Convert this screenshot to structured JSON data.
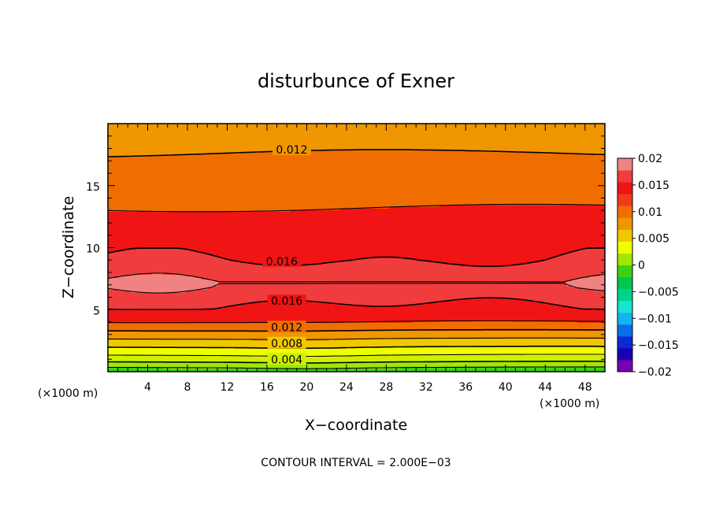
{
  "chart_data": {
    "type": "heatmap",
    "title": "disturbunce of Exner",
    "xlabel": "X−coordinate",
    "ylabel": "Z−coordinate",
    "x_unit": "(×1000 m)",
    "y_unit": "(×1000 m)",
    "xlim": [
      0,
      50
    ],
    "ylim": [
      0,
      20
    ],
    "xticks": [
      4,
      8,
      12,
      16,
      20,
      24,
      28,
      32,
      36,
      40,
      44,
      48
    ],
    "yticks": [
      5,
      10,
      15
    ],
    "contour_interval_text": "CONTOUR INTERVAL = 2.000E−03",
    "contour_interval": 0.002,
    "contour_levels": [
      0.002,
      0.004,
      0.006,
      0.008,
      0.01,
      0.012,
      0.014,
      0.016,
      0.018
    ],
    "contour_labels": [
      {
        "text": "0.012",
        "x": 18.5,
        "z": 17.9
      },
      {
        "text": "0.016",
        "x": 17.5,
        "z": 8.9
      },
      {
        "text": "0.016",
        "x": 18.0,
        "z": 5.7
      },
      {
        "text": "0.012",
        "x": 18.0,
        "z": 3.6
      },
      {
        "text": "0.008",
        "x": 18.0,
        "z": 2.3
      },
      {
        "text": "0.004",
        "x": 18.0,
        "z": 1.0
      }
    ],
    "colorbar": {
      "min": -0.02,
      "max": 0.02,
      "ticks": [
        "0.02",
        "0.015",
        "0.01",
        "0.005",
        "0",
        "−0.005",
        "−0.01",
        "−0.015",
        "−0.02"
      ],
      "colors": [
        "#7a00b4",
        "#1a00b4",
        "#0a2ad8",
        "#0a6eea",
        "#14b4f0",
        "#14e6d2",
        "#00d28c",
        "#00c84b",
        "#3cd214",
        "#a0e60a",
        "#f0ff00",
        "#f0c800",
        "#f09600",
        "#f06e00",
        "#f03c1e",
        "#f01414",
        "#f03c3c",
        "#f08282"
      ]
    },
    "bands": [
      {
        "level": 0.0,
        "color": "#3cd214"
      },
      {
        "level": 0.002,
        "color": "#a0e60a"
      },
      {
        "level": 0.004,
        "color": "#cff000"
      },
      {
        "level": 0.006,
        "color": "#f0ff00"
      },
      {
        "level": 0.008,
        "color": "#f0c800"
      },
      {
        "level": 0.01,
        "color": "#f09600"
      },
      {
        "level": 0.012,
        "color": "#f06e00"
      },
      {
        "level": 0.014,
        "color": "#f01414"
      },
      {
        "level": 0.016,
        "color": "#f03c3c"
      },
      {
        "level": 0.018,
        "color": "#f08282"
      }
    ],
    "profile_z": [
      0,
      0.4,
      0.8,
      1.2,
      1.6,
      2.0,
      2.4,
      2.8,
      3.2,
      3.6,
      4.0,
      5.0,
      6.0,
      6.8,
      7.2,
      8.0,
      9.0,
      10.0,
      11.0,
      12.0,
      13.0,
      14.0,
      15.0,
      16.0,
      17.0,
      18.0,
      19.0,
      20.0
    ],
    "profile_p": [
      0.0005,
      0.0022,
      0.004,
      0.0055,
      0.0068,
      0.008,
      0.0092,
      0.0104,
      0.0116,
      0.0128,
      0.014,
      0.0156,
      0.0168,
      0.0177,
      0.0179,
      0.0172,
      0.0161,
      0.0154,
      0.015,
      0.0146,
      0.0141,
      0.0136,
      0.0132,
      0.0128,
      0.0123,
      0.0118,
      0.0114,
      0.011
    ]
  }
}
